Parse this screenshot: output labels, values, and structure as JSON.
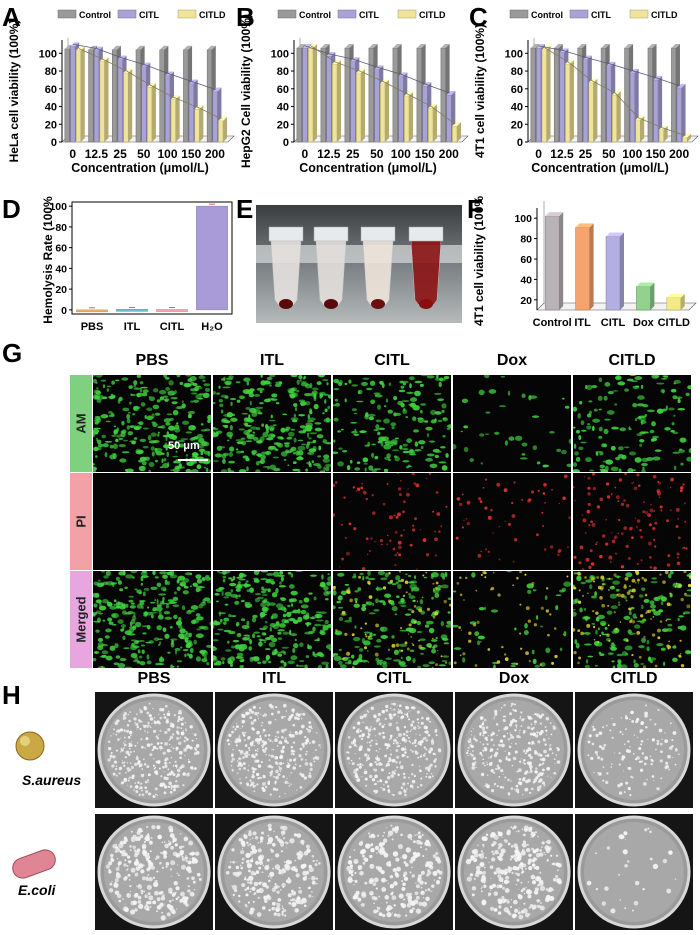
{
  "panel_letters": [
    "A",
    "B",
    "C",
    "D",
    "E",
    "F",
    "G",
    "H"
  ],
  "colors": {
    "control": "#9a9a9a",
    "citl": "#a9a2d6",
    "citld": "#f0e39a",
    "hemo": [
      "#f2b26e",
      "#6fbecf",
      "#f6a3a8",
      "#a99ad8"
    ],
    "f": [
      "#b9b3b8",
      "#f4a46c",
      "#b3afe0",
      "#93d18e",
      "#f2ea86"
    ],
    "am": "#3fd33f",
    "pi": "#e03030"
  },
  "chart_data": [
    {
      "id": "A",
      "type": "bar",
      "ylabel": "HeLa cell viability (100%)",
      "xlabel": "Concentration (μmol/L)",
      "categories": [
        "0",
        "12.5",
        "25",
        "50",
        "100",
        "150",
        "200"
      ],
      "yticks": [
        "0",
        "20",
        "40",
        "60",
        "80",
        "100"
      ],
      "ylim": [
        0,
        115
      ],
      "legend": [
        "Control",
        "CITL",
        "CITLD"
      ],
      "series": [
        {
          "name": "Control",
          "values": [
            105,
            104,
            104,
            104,
            104,
            104,
            104
          ]
        },
        {
          "name": "CITL",
          "values": [
            108,
            103,
            93,
            85,
            75,
            66,
            57
          ]
        },
        {
          "name": "CITLD",
          "values": [
            103,
            91,
            78,
            62,
            48,
            37,
            24
          ]
        }
      ]
    },
    {
      "id": "B",
      "type": "bar",
      "ylabel": "HepG2 Cell viability (100%)",
      "xlabel": "Concentration (μmol/L)",
      "categories": [
        "0",
        "12.5",
        "25",
        "50",
        "100",
        "150",
        "200"
      ],
      "yticks": [
        "0",
        "20",
        "40",
        "60",
        "80",
        "100"
      ],
      "ylim": [
        0,
        115
      ],
      "legend": [
        "Control",
        "CITL",
        "CITLD"
      ],
      "series": [
        {
          "name": "Control",
          "values": [
            106,
            106,
            106,
            106,
            106,
            106,
            106
          ]
        },
        {
          "name": "CITL",
          "values": [
            106,
            97,
            91,
            82,
            74,
            63,
            53
          ]
        },
        {
          "name": "CITLD",
          "values": [
            106,
            88,
            78,
            66,
            52,
            38,
            18
          ]
        }
      ]
    },
    {
      "id": "C",
      "type": "bar",
      "ylabel": "4T1 cell viability (100%)",
      "xlabel": "Concentration (μmol/L)",
      "categories": [
        "0",
        "12.5",
        "25",
        "50",
        "100",
        "150",
        "200"
      ],
      "yticks": [
        "0",
        "20",
        "40",
        "60",
        "80",
        "100"
      ],
      "ylim": [
        0,
        115
      ],
      "legend": [
        "Control",
        "CITL",
        "CITLD"
      ],
      "series": [
        {
          "name": "Control",
          "values": [
            106,
            106,
            106,
            106,
            106,
            106,
            106
          ]
        },
        {
          "name": "CITL",
          "values": [
            106,
            101,
            93,
            86,
            78,
            70,
            61
          ]
        },
        {
          "name": "CITLD",
          "values": [
            104,
            88,
            67,
            53,
            25,
            14,
            5
          ]
        }
      ]
    },
    {
      "id": "D",
      "type": "bar",
      "ylabel": "Hemolysis Rate (100%)",
      "categories": [
        "PBS",
        "ITL",
        "CITL",
        "H₂O"
      ],
      "yticks": [
        "0",
        "20",
        "40",
        "60",
        "80",
        "100"
      ],
      "ylim": [
        -4,
        104
      ],
      "values": [
        -1.5,
        0.5,
        0.3,
        100
      ]
    },
    {
      "id": "F",
      "type": "bar",
      "ylabel": "4T1 cell viability (100%)",
      "categories": [
        "Control",
        "ITL",
        "CITL",
        "Dox",
        "CITLD"
      ],
      "yticks": [
        "20",
        "40",
        "60",
        "80",
        "100"
      ],
      "ylim": [
        10,
        110
      ],
      "values": [
        102,
        91,
        82,
        33,
        22
      ]
    }
  ],
  "fluorescence": {
    "columns": [
      "PBS",
      "ITL",
      "CITL",
      "Dox",
      "CITLD"
    ],
    "rows": [
      "AM",
      "PI",
      "Merged"
    ],
    "scale_bar": "50 μm",
    "green_density": [
      0.9,
      0.9,
      0.55,
      0.12,
      0.45
    ],
    "red_density": [
      0.0,
      0.0,
      0.35,
      0.25,
      0.55
    ]
  },
  "plates": {
    "columns": [
      "PBS",
      "ITL",
      "CITL",
      "Dox",
      "CITLD"
    ],
    "organisms": [
      "S.aureus",
      "E.coli"
    ],
    "colony_density": [
      [
        0.9,
        0.85,
        0.9,
        0.8,
        0.35
      ],
      [
        0.7,
        0.7,
        0.65,
        0.75,
        0.08
      ]
    ]
  }
}
